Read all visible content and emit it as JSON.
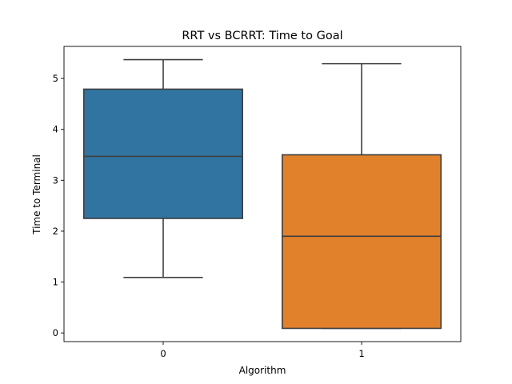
{
  "chart_data": {
    "type": "box",
    "title": "RRT vs BCRRT: Time to Goal",
    "xlabel": "Algorithm",
    "ylabel": "Time to Terminal",
    "categories": [
      "0",
      "1"
    ],
    "yticks": [
      0,
      1,
      2,
      3,
      4,
      5
    ],
    "ylim": [
      -0.17,
      5.63
    ],
    "grid": false,
    "boxes": [
      {
        "category": "0",
        "whisker_low": 1.09,
        "q1": 2.25,
        "median": 3.47,
        "q3": 4.79,
        "whisker_high": 5.37,
        "color": "#3274a1"
      },
      {
        "category": "1",
        "whisker_low": 0.09,
        "q1": 0.09,
        "median": 1.9,
        "q3": 3.5,
        "whisker_high": 5.29,
        "color": "#e1812c"
      }
    ],
    "line_color": "#3f3f3f"
  }
}
